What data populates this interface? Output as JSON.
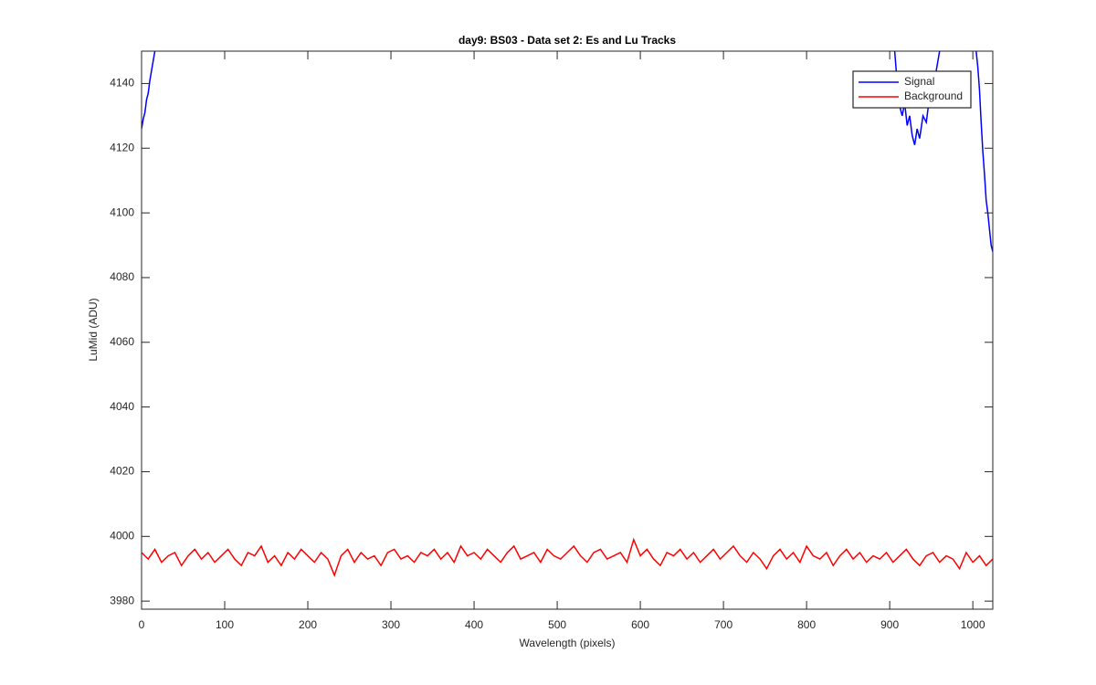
{
  "chart_data": {
    "type": "line",
    "title": "day9: BS03 - Data set 2: Es and Lu Tracks",
    "xlabel": "Wavelength (pixels)",
    "ylabel": "LuMid (ADU)",
    "xlim": [
      0,
      1024
    ],
    "ylim": [
      3977.5,
      4150
    ],
    "xticks": [
      0,
      100,
      200,
      300,
      400,
      500,
      600,
      700,
      800,
      900,
      1000
    ],
    "yticks": [
      3980,
      4000,
      4020,
      4040,
      4060,
      4080,
      4100,
      4120,
      4140
    ],
    "legend": "top-right",
    "series": [
      {
        "name": "Signal",
        "color": "#0000ff",
        "x": [
          0,
          2,
          4,
          6,
          8,
          10,
          12,
          14,
          16,
          null,
          906,
          909,
          912,
          915,
          918,
          921,
          924,
          927,
          930,
          933,
          936,
          940,
          944,
          948,
          952,
          956,
          960,
          null,
          1004,
          1006,
          1008,
          1010,
          1012,
          1014,
          1016,
          1018,
          1020,
          1022,
          1024
        ],
        "values": [
          4126,
          4129,
          4131,
          4135,
          4137,
          4141,
          4144,
          4147,
          4150,
          null,
          4150,
          4140,
          4133,
          4130,
          4134,
          4127,
          4130,
          4124,
          4121,
          4126,
          4123,
          4130,
          4128,
          4136,
          4139,
          4144,
          4150,
          null,
          4150,
          4145,
          4138,
          4128,
          4119,
          4112,
          4104,
          4100,
          4095,
          4090,
          4088
        ]
      },
      {
        "name": "Background",
        "color": "#ff0000",
        "x": [
          0,
          8,
          16,
          24,
          32,
          40,
          48,
          56,
          64,
          72,
          80,
          88,
          96,
          104,
          112,
          120,
          128,
          136,
          144,
          152,
          160,
          168,
          176,
          184,
          192,
          200,
          208,
          216,
          224,
          232,
          240,
          248,
          256,
          264,
          272,
          280,
          288,
          296,
          304,
          312,
          320,
          328,
          336,
          344,
          352,
          360,
          368,
          376,
          384,
          392,
          400,
          408,
          416,
          424,
          432,
          440,
          448,
          456,
          464,
          472,
          480,
          488,
          496,
          504,
          512,
          520,
          528,
          536,
          544,
          552,
          560,
          568,
          576,
          584,
          592,
          600,
          608,
          616,
          624,
          632,
          640,
          648,
          656,
          664,
          672,
          680,
          688,
          696,
          704,
          712,
          720,
          728,
          736,
          744,
          752,
          760,
          768,
          776,
          784,
          792,
          800,
          808,
          816,
          824,
          832,
          840,
          848,
          856,
          864,
          872,
          880,
          888,
          896,
          904,
          912,
          920,
          928,
          936,
          944,
          952,
          960,
          968,
          976,
          984,
          992,
          1000,
          1008,
          1016,
          1024
        ],
        "values": [
          3995,
          3993,
          3996,
          3992,
          3994,
          3995,
          3991,
          3994,
          3996,
          3993,
          3995,
          3992,
          3994,
          3996,
          3993,
          3991,
          3995,
          3994,
          3997,
          3992,
          3994,
          3991,
          3995,
          3993,
          3996,
          3994,
          3992,
          3995,
          3993,
          3988,
          3994,
          3996,
          3992,
          3995,
          3993,
          3994,
          3991,
          3995,
          3996,
          3993,
          3994,
          3992,
          3995,
          3994,
          3996,
          3993,
          3995,
          3992,
          3997,
          3994,
          3995,
          3993,
          3996,
          3994,
          3992,
          3995,
          3997,
          3993,
          3994,
          3995,
          3992,
          3996,
          3994,
          3993,
          3995,
          3997,
          3994,
          3992,
          3995,
          3996,
          3993,
          3994,
          3995,
          3992,
          3999,
          3994,
          3996,
          3993,
          3991,
          3995,
          3994,
          3996,
          3993,
          3995,
          3992,
          3994,
          3996,
          3993,
          3995,
          3997,
          3994,
          3992,
          3995,
          3993,
          3990,
          3994,
          3996,
          3993,
          3995,
          3992,
          3997,
          3994,
          3993,
          3995,
          3991,
          3994,
          3996,
          3993,
          3995,
          3992,
          3994,
          3993,
          3995,
          3992,
          3994,
          3996,
          3993,
          3991,
          3994,
          3995,
          3992,
          3994,
          3993,
          3990,
          3995,
          3992,
          3994,
          3991,
          3993
        ]
      }
    ]
  }
}
